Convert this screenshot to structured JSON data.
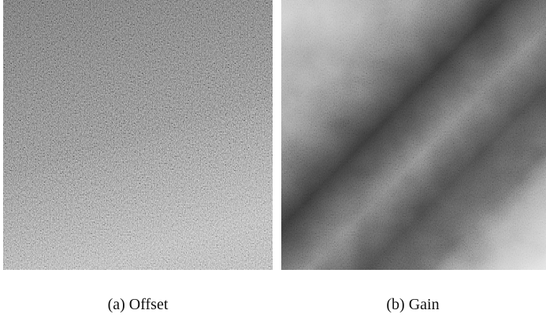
{
  "figure": {
    "subfigures": [
      {
        "caption": "(a) Offset"
      },
      {
        "caption": "(b) Gain"
      }
    ]
  }
}
